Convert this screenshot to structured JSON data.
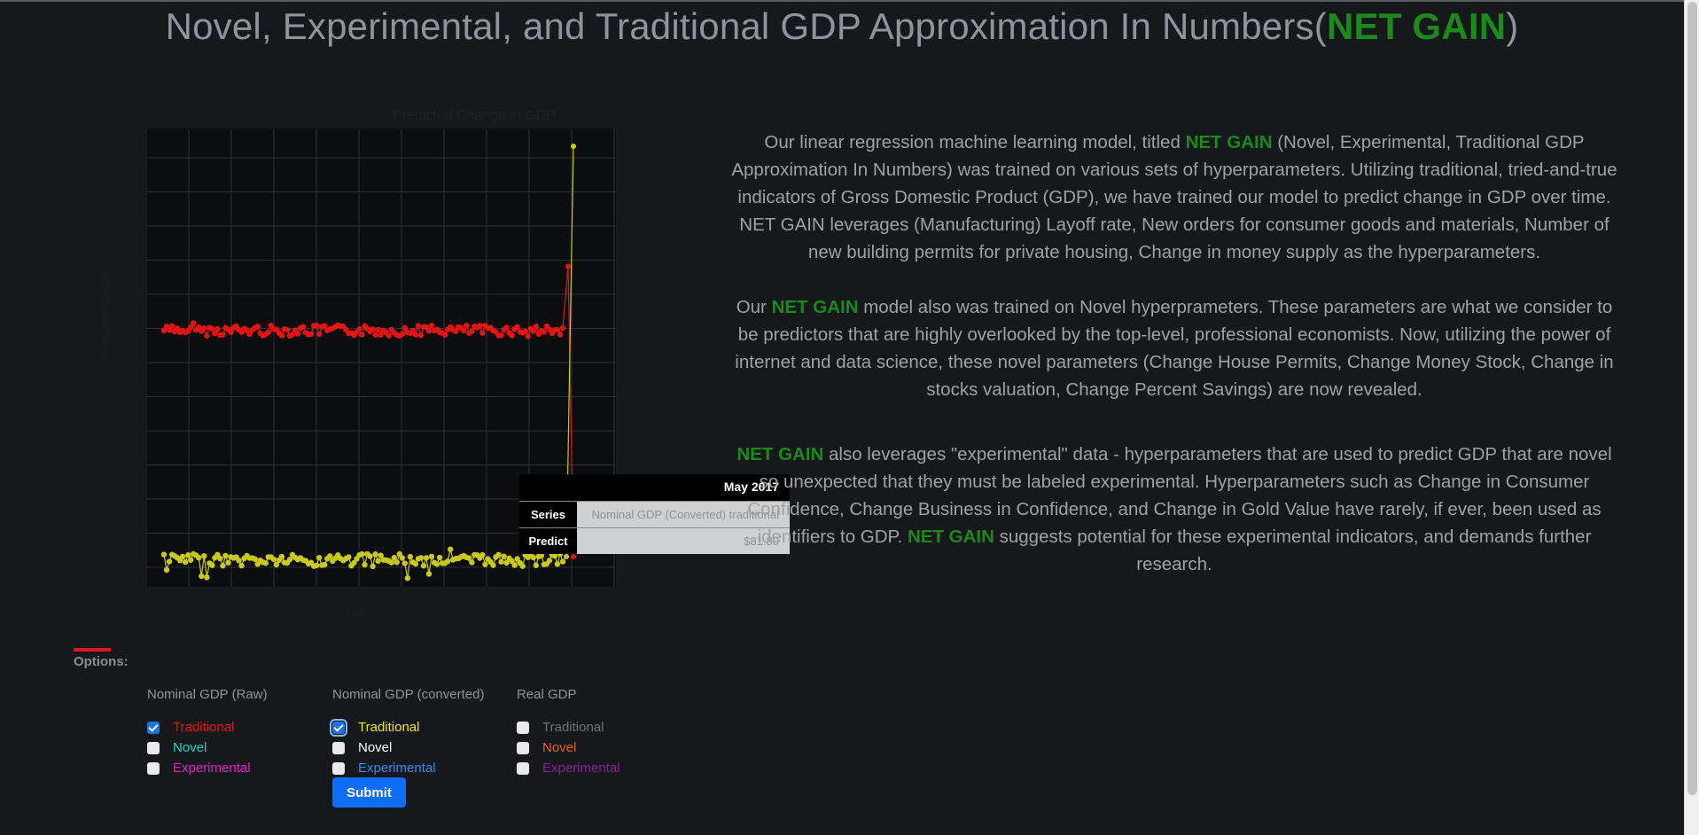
{
  "page": {
    "title_prefix": "Novel, Experimental, and Traditional GDP Approximation In Numbers(",
    "title_brand": "NET GAIN",
    "title_suffix": ")"
  },
  "chart_data": {
    "type": "line",
    "title": "Predicted Change in GDP",
    "xlabel": "Year",
    "ylabel": "Predicted Change",
    "series": [
      {
        "values_hint": "traditional-raw",
        "color": "#e31414"
      },
      {
        "values_hint": "traditional-converted",
        "color": "#c8c81e"
      }
    ],
    "red_baseline": 0.56,
    "yellow_baseline": 0.06,
    "grid": true
  },
  "tooltip": {
    "date": "May 2017",
    "series_key": "Series",
    "series_value": "Nominal GDP (Converted) traditional",
    "predict_key": "Predict",
    "predict_value": "$81.80"
  },
  "description": {
    "p1_a": "Our linear regression machine learning model, titled ",
    "p1_brand": "NET GAIN",
    "p1_b": " (Novel, Experimental, Traditional GDP Approximation In Numbers) was trained on various sets of hyperparameters. Utilizing traditional, tried-and-true indicators of Gross Domestic Product (GDP), we have trained our model to predict change in GDP over time. NET GAIN leverages (Manufacturing) Layoff rate, New orders for consumer goods and materials, Number of new building permits for private housing, Change in money supply as the hyperparameters.",
    "p2_a": "Our ",
    "p2_brand": "NET GAIN",
    "p2_b": " model also was trained on Novel hyperprameters. These parameters are what we consider to be predictors that are highly overlooked by the top-level, professional economists. Now, utilizing the power of internet and data science, these novel parameters (Change House Permits, Change Money Stock, Change in stocks valuation, Change Percent Savings) are now revealed.",
    "p3_brand1": "NET GAIN",
    "p3_a": " also leverages \"experimental\" data - hyperparameters that are used to predict GDP that are novel so unexpected that they must be labeled experimental. Hyperparameters such as Change in Consumer Confidence, Change Business in Confidence, and Change in Gold Value have rarely, if ever, been used as identifiers to GDP. ",
    "p3_brand2": "NET GAIN",
    "p3_b": " suggests potential for these experimental indicators, and demands further research."
  },
  "options": {
    "label": "Options:",
    "groups": [
      {
        "heading": "Nominal GDP (Raw)",
        "items": [
          {
            "label": "Traditional",
            "checked": true,
            "color": "#e31414"
          },
          {
            "label": "Novel",
            "checked": false,
            "color": "#17d6c8"
          },
          {
            "label": "Experimental",
            "checked": false,
            "color": "#e01fd0"
          }
        ]
      },
      {
        "heading": "Nominal GDP (converted)",
        "items": [
          {
            "label": "Traditional",
            "checked": true,
            "color": "#e8e81e"
          },
          {
            "label": "Novel",
            "checked": false,
            "color": "#ffffff"
          },
          {
            "label": "Experimental",
            "checked": false,
            "color": "#2f8cf0"
          }
        ]
      },
      {
        "heading": "Real GDP",
        "items": [
          {
            "label": "Traditional",
            "checked": false,
            "color": "#6f747a"
          },
          {
            "label": "Novel",
            "checked": false,
            "color": "#e0661c"
          },
          {
            "label": "Experimental",
            "checked": false,
            "color": "#8a1f9a"
          }
        ]
      }
    ],
    "submit_label": "Submit"
  }
}
